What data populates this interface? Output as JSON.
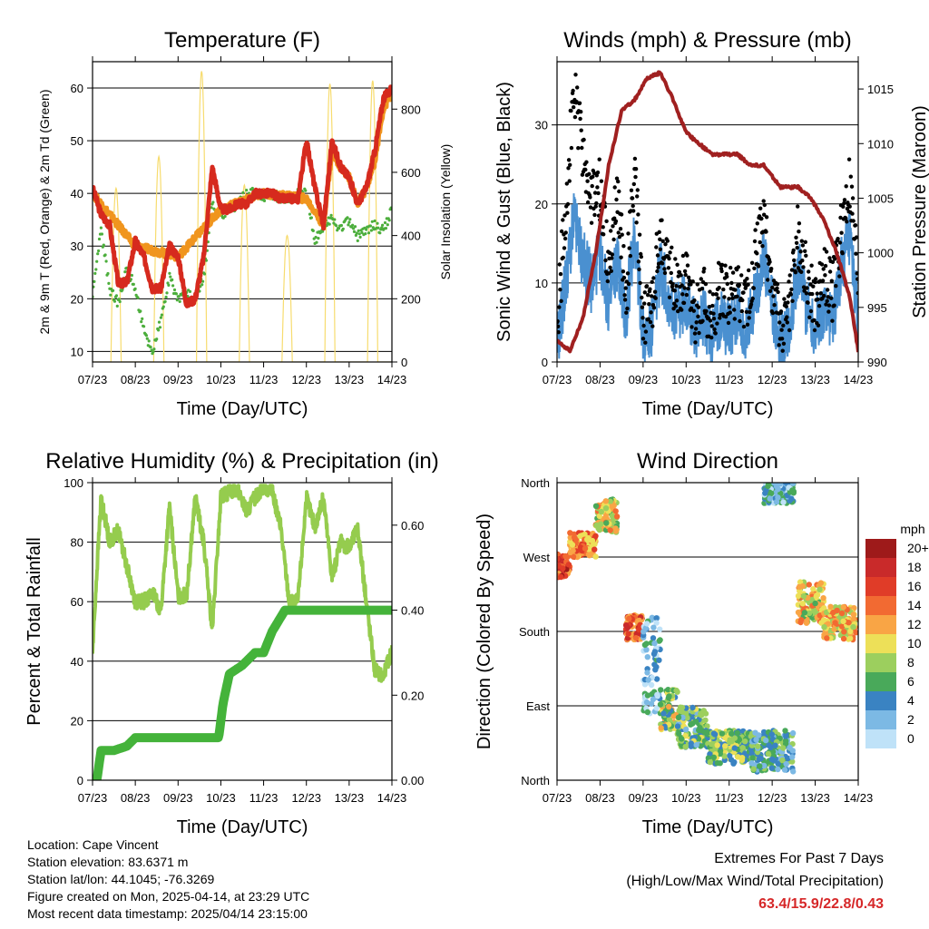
{
  "x_ticks": [
    "07/23",
    "08/23",
    "09/23",
    "10/23",
    "11/23",
    "12/23",
    "13/23",
    "14/23"
  ],
  "chart_data": [
    {
      "type": "line",
      "title": "Temperature (F)",
      "xlabel": "Time (Day/UTC)",
      "ylabel": "2m & 9m T (Red, Orange) & 2m Td (Green)",
      "y2label": "Solar Insolation (Yellow)",
      "ylim": [
        8,
        65
      ],
      "yticks": [
        10,
        20,
        30,
        40,
        50,
        60
      ],
      "y2lim": [
        0,
        950
      ],
      "y2ticks": [
        0,
        200,
        400,
        600,
        800
      ],
      "xlim": [
        7,
        14
      ],
      "series": [
        {
          "name": "2m T",
          "color": "#d62a1e",
          "x": [
            7.0,
            7.2,
            7.4,
            7.6,
            7.8,
            8.0,
            8.2,
            8.4,
            8.6,
            8.8,
            9.0,
            9.2,
            9.4,
            9.6,
            9.8,
            10.0,
            10.2,
            10.4,
            10.6,
            10.8,
            11.0,
            11.2,
            11.4,
            11.6,
            11.8,
            12.0,
            12.2,
            12.4,
            12.6,
            12.8,
            13.0,
            13.2,
            13.4,
            13.6,
            13.8,
            14.0
          ],
          "y": [
            41,
            36,
            34,
            23,
            23,
            31,
            28,
            22,
            22,
            30,
            28,
            19,
            20,
            28,
            45,
            37,
            37,
            38,
            38,
            40,
            40,
            40,
            39,
            39,
            39,
            50,
            41,
            34,
            50,
            45,
            43,
            38,
            41,
            48,
            58,
            60
          ]
        },
        {
          "name": "9m T",
          "color": "#f0951e",
          "x": [
            7.0,
            8.0,
            9.0,
            10.0,
            11.0,
            12.0,
            12.4,
            12.6,
            12.8,
            13.0,
            13.2,
            13.4,
            13.6,
            13.8,
            14.0
          ],
          "y": [
            40,
            30,
            28,
            37,
            40,
            39,
            34,
            48,
            45,
            43,
            38,
            41,
            46,
            56,
            59
          ]
        },
        {
          "name": "2m Td",
          "color": "#4cae3c",
          "x": [
            7.0,
            7.2,
            7.4,
            7.6,
            7.8,
            8.0,
            8.2,
            8.4,
            8.6,
            8.8,
            9.0,
            9.2,
            9.4,
            9.6,
            9.8,
            10.0,
            10.2,
            10.4,
            10.6,
            10.8,
            11.0,
            11.2,
            11.4,
            11.6,
            11.8,
            12.0,
            12.2,
            12.4,
            12.6,
            12.8,
            13.0,
            13.2,
            13.4,
            13.6,
            13.8,
            14.0
          ],
          "y": [
            20,
            33,
            22,
            19,
            26,
            22,
            14,
            10,
            16,
            24,
            20,
            21,
            20,
            24,
            38,
            36,
            37,
            38,
            40,
            40,
            39,
            40,
            39,
            39,
            40,
            40,
            31,
            34,
            35,
            33,
            35,
            32,
            33,
            34,
            33,
            37
          ]
        },
        {
          "name": "Solar Insolation",
          "color": "#f7dc6f",
          "axis": "y2",
          "peaks_x": [
            7.55,
            8.55,
            9.55,
            10.55,
            11.55,
            12.55,
            13.55
          ],
          "peaks_y": [
            550,
            650,
            920,
            560,
            400,
            880,
            890
          ]
        }
      ]
    },
    {
      "type": "scatter",
      "title": "Winds (mph) & Pressure (mb)",
      "xlabel": "Time (Day/UTC)",
      "ylabel": "Sonic Wind & Gust (Blue, Black)",
      "y2label": "Station Pressure (Maroon)",
      "ylim": [
        0,
        38
      ],
      "yticks": [
        0,
        10,
        20,
        30
      ],
      "y2lim": [
        990,
        1017.5
      ],
      "y2ticks": [
        990,
        995,
        1000,
        1005,
        1010,
        1015
      ],
      "xlim": [
        7,
        14
      ],
      "series": [
        {
          "name": "Sonic Wind",
          "color": "#4a90d0",
          "x": [
            7.0,
            7.2,
            7.4,
            7.6,
            7.8,
            8.0,
            8.2,
            8.4,
            8.6,
            8.8,
            9.0,
            9.2,
            9.4,
            9.6,
            9.8,
            10.0,
            10.2,
            10.4,
            10.6,
            10.8,
            11.0,
            11.2,
            11.4,
            11.6,
            11.8,
            12.0,
            12.2,
            12.4,
            12.6,
            12.8,
            13.0,
            13.2,
            13.4,
            13.6,
            13.8,
            14.0
          ],
          "y": [
            2,
            10,
            18,
            13,
            10,
            14,
            7,
            13,
            5,
            17,
            3,
            4,
            12,
            8,
            6,
            8,
            4,
            6,
            3,
            6,
            4,
            6,
            3,
            8,
            13,
            7,
            2,
            5,
            12,
            7,
            4,
            7,
            5,
            12,
            15,
            5
          ]
        },
        {
          "name": "Gust",
          "color": "#000000",
          "x": [
            7.0,
            7.2,
            7.4,
            7.6,
            7.8,
            8.0,
            8.2,
            8.4,
            8.6,
            8.8,
            9.0,
            9.2,
            9.4,
            9.6,
            9.8,
            10.0,
            10.2,
            10.4,
            10.6,
            10.8,
            11.0,
            11.2,
            11.4,
            11.6,
            11.8,
            12.0,
            12.2,
            12.4,
            12.6,
            12.8,
            13.0,
            13.2,
            13.4,
            13.6,
            13.8,
            14.0
          ],
          "y": [
            4,
            20,
            34,
            27,
            20,
            22,
            12,
            22,
            8,
            25,
            5,
            7,
            16,
            12,
            9,
            12,
            6,
            9,
            5,
            10,
            8,
            9,
            6,
            13,
            18,
            10,
            4,
            8,
            16,
            11,
            7,
            11,
            9,
            16,
            22,
            10
          ]
        },
        {
          "name": "Station Pressure",
          "color": "#a02020",
          "axis": "y2",
          "x": [
            7.0,
            7.3,
            7.6,
            7.9,
            8.2,
            8.5,
            8.8,
            9.1,
            9.4,
            9.7,
            10.0,
            10.3,
            10.6,
            10.9,
            11.2,
            11.5,
            11.8,
            12.2,
            12.6,
            12.9,
            13.2,
            13.5,
            13.8,
            14.0
          ],
          "y": [
            992,
            991,
            994,
            1000,
            1008,
            1013,
            1014,
            1016,
            1016.5,
            1014,
            1011,
            1010,
            1009,
            1009,
            1009,
            1008,
            1008,
            1006,
            1006,
            1005,
            1003,
            1000,
            996,
            991
          ]
        }
      ]
    },
    {
      "type": "line",
      "title": "Relative Humidity (%) & Precipitation (in)",
      "xlabel": "Time (Day/UTC)",
      "ylabel": "Percent & Total Rainfall",
      "ylim": [
        0,
        100
      ],
      "yticks": [
        0,
        20,
        40,
        60,
        80,
        100
      ],
      "y2lim": [
        0,
        0.7
      ],
      "y2ticks": [
        "0.00",
        "0.20",
        "0.40",
        "0.60"
      ],
      "xlim": [
        7,
        14
      ],
      "series": [
        {
          "name": "Relative Humidity",
          "color": "#95cc4e",
          "x": [
            7.0,
            7.1,
            7.2,
            7.4,
            7.6,
            7.8,
            8.0,
            8.2,
            8.4,
            8.6,
            8.8,
            9.0,
            9.2,
            9.4,
            9.6,
            9.8,
            10.0,
            10.2,
            10.4,
            10.6,
            10.8,
            11.0,
            11.2,
            11.4,
            11.6,
            11.8,
            12.0,
            12.2,
            12.4,
            12.6,
            12.8,
            13.0,
            13.2,
            13.4,
            13.6,
            13.8,
            14.0
          ],
          "y": [
            43,
            70,
            95,
            80,
            84,
            72,
            60,
            60,
            63,
            57,
            92,
            62,
            62,
            95,
            80,
            50,
            95,
            97,
            98,
            90,
            95,
            99,
            97,
            85,
            60,
            60,
            95,
            85,
            95,
            68,
            80,
            78,
            85,
            60,
            37,
            35,
            44
          ]
        },
        {
          "name": "Total Precipitation",
          "color": "#44b33a",
          "axis": "y2",
          "x": [
            7.0,
            7.1,
            7.2,
            7.5,
            7.8,
            8.0,
            8.5,
            9.0,
            9.5,
            9.95,
            10.05,
            10.2,
            10.5,
            10.8,
            11.0,
            11.2,
            11.5,
            12.0,
            13.0,
            14.0
          ],
          "y": [
            0.0,
            0.0,
            0.07,
            0.07,
            0.08,
            0.1,
            0.1,
            0.1,
            0.1,
            0.1,
            0.18,
            0.25,
            0.27,
            0.3,
            0.3,
            0.35,
            0.4,
            0.4,
            0.4,
            0.4
          ]
        }
      ]
    },
    {
      "type": "scatter",
      "title": "Wind Direction",
      "xlabel": "Time (Day/UTC)",
      "ylabel": "Direction (Colored By Speed)",
      "yticks": [
        "North",
        "East",
        "South",
        "West",
        "North"
      ],
      "ylim": [
        0,
        360
      ],
      "xlim": [
        7,
        14
      ],
      "colorbar_title": "mph",
      "colorbar_labels": [
        "20+",
        "18",
        "16",
        "14",
        "12",
        "10",
        "8",
        "6",
        "4",
        "2",
        "0"
      ],
      "colorbar_colors": [
        "#9e1a1a",
        "#c92a2a",
        "#e03c28",
        "#f26a32",
        "#f9a545",
        "#ede058",
        "#9ccf5e",
        "#49a95a",
        "#3a83c2",
        "#7cb9e4",
        "#bfe2f8"
      ],
      "points_by_period": [
        {
          "x": [
            7.0,
            7.3
          ],
          "dir": [
            245,
            275
          ],
          "speed": 16
        },
        {
          "x": [
            7.3,
            7.9
          ],
          "dir": [
            270,
            300
          ],
          "speed": 13
        },
        {
          "x": [
            7.9,
            8.4
          ],
          "dir": [
            300,
            340
          ],
          "speed": 10
        },
        {
          "x": [
            8.6,
            9.0
          ],
          "dir": [
            170,
            200
          ],
          "speed": 15
        },
        {
          "x": [
            9.0,
            9.4
          ],
          "dir": [
            80,
            200
          ],
          "speed": 3
        },
        {
          "x": [
            9.4,
            9.8
          ],
          "dir": [
            60,
            110
          ],
          "speed": 8
        },
        {
          "x": [
            9.8,
            10.5
          ],
          "dir": [
            40,
            90
          ],
          "speed": 6
        },
        {
          "x": [
            10.5,
            11.5
          ],
          "dir": [
            20,
            60
          ],
          "speed": 7
        },
        {
          "x": [
            11.5,
            12.5
          ],
          "dir": [
            10,
            60
          ],
          "speed": 5
        },
        {
          "x": [
            11.8,
            12.5
          ],
          "dir": [
            335,
            360
          ],
          "speed": 3
        },
        {
          "x": [
            12.6,
            13.2
          ],
          "dir": [
            190,
            240
          ],
          "speed": 10
        },
        {
          "x": [
            13.2,
            14.0
          ],
          "dir": [
            170,
            210
          ],
          "speed": 11
        }
      ]
    }
  ],
  "info": {
    "location": "Location: Cape Vincent",
    "elevation": "Station elevation: 83.6371 m",
    "latlon": "Station lat/lon: 44.1045; -76.3269",
    "created": "Figure created on Mon, 2025-04-14, at 23:29 UTC",
    "recent": "Most recent data timestamp: 2025/04/14 23:15:00"
  },
  "extremes": {
    "line1": "Extremes For Past 7 Days",
    "line2": "(High/Low/Max Wind/Total Precipitation)",
    "values": "63.4/15.9/22.8/0.43"
  }
}
